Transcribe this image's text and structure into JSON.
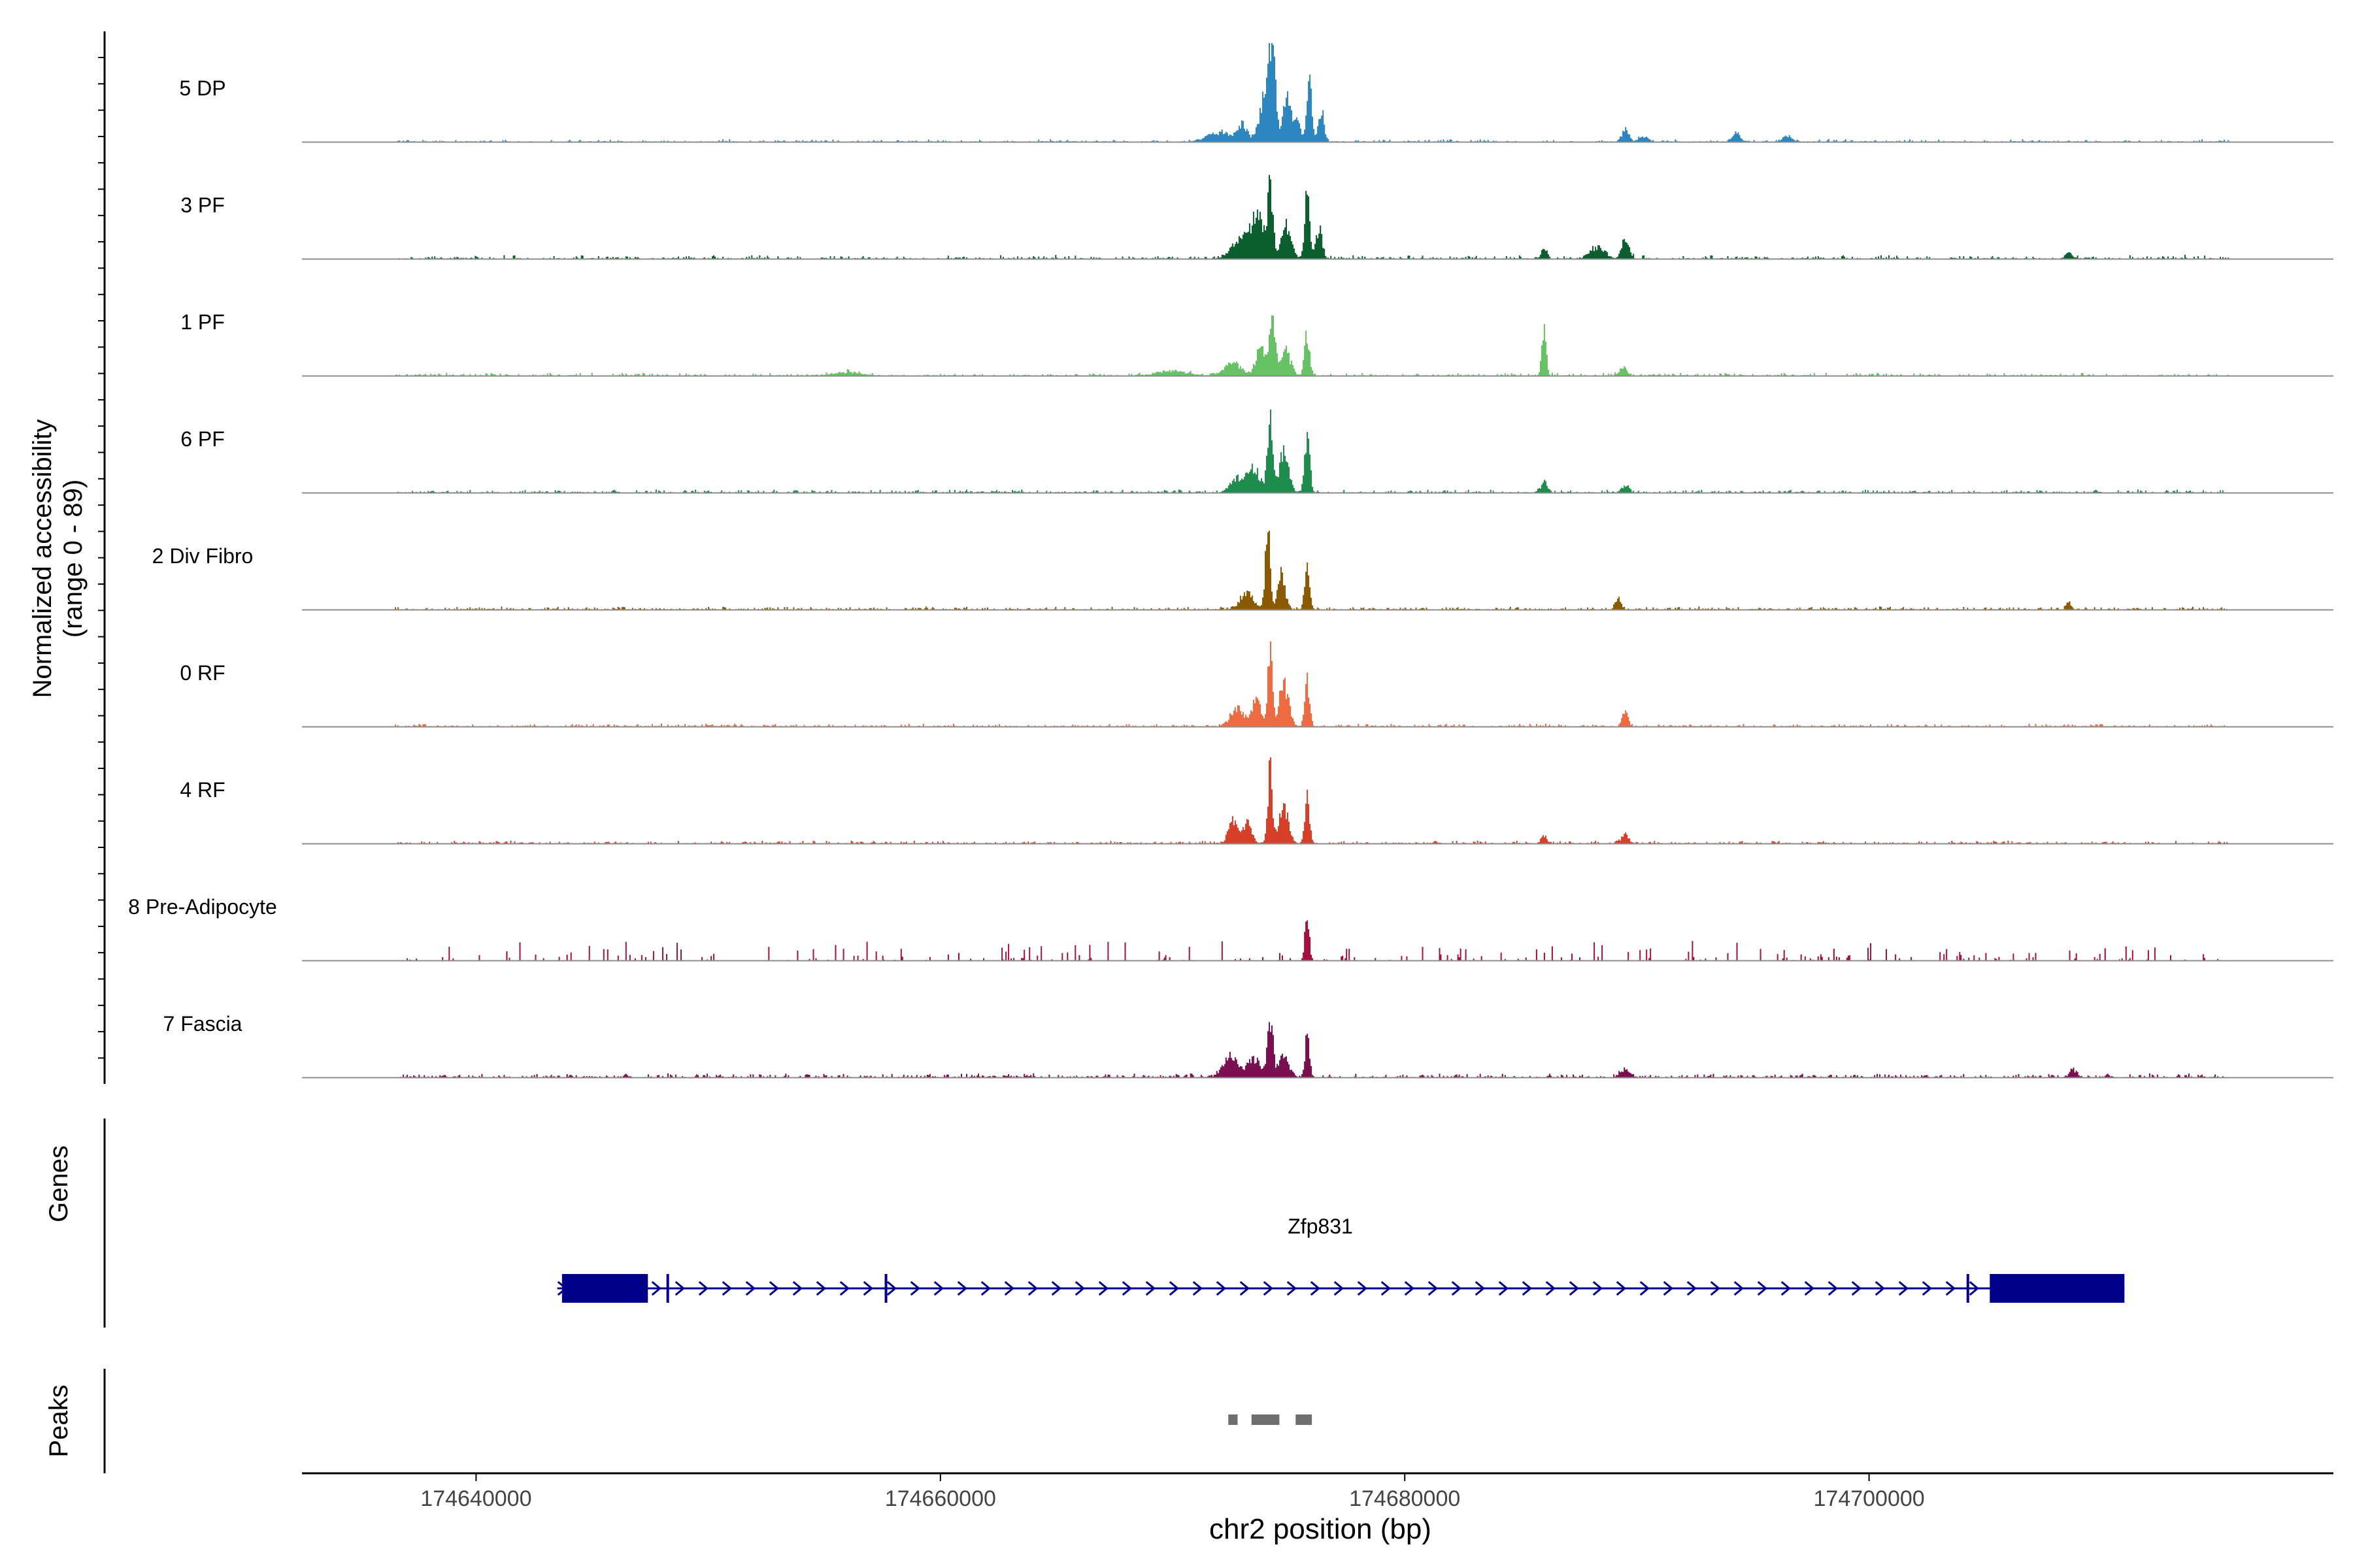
{
  "chart_data": {
    "type": "area",
    "title": "",
    "ylabel_main": "Normalized accessibility",
    "ylabel_range": "(range 0 - 89)",
    "y_range": [
      0,
      89
    ],
    "xlabel": "chr2 position (bp)",
    "xlim": [
      174632500,
      174720000
    ],
    "xticks": [
      174640000,
      174660000,
      174680000,
      174700000
    ],
    "xtick_labels": [
      "174640000",
      "174660000",
      "174680000",
      "174700000"
    ],
    "grid": false,
    "track_span": [
      174636500,
      174715500
    ],
    "tracks": [
      {
        "name": "5 DP",
        "color": "#2E86C1",
        "noise": 0.028,
        "density": 0.55,
        "peaks": [
          [
            174672000,
            0.12,
            500
          ],
          [
            174673000,
            0.22,
            200
          ],
          [
            174674300,
            1.0,
            130
          ],
          [
            174674000,
            0.6,
            250
          ],
          [
            174674900,
            0.5,
            150
          ],
          [
            174675300,
            0.28,
            200
          ],
          [
            174675900,
            0.9,
            100
          ],
          [
            174676400,
            0.42,
            120
          ],
          [
            174689500,
            0.16,
            150
          ],
          [
            174694300,
            0.12,
            150
          ],
          [
            174690300,
            0.07,
            200
          ],
          [
            174696500,
            0.07,
            200
          ]
        ]
      },
      {
        "name": "3 PF",
        "color": "#0B5E2E",
        "noise": 0.04,
        "density": 0.55,
        "peaks": [
          [
            174673000,
            0.3,
            400
          ],
          [
            174674200,
            0.82,
            120
          ],
          [
            174673700,
            0.5,
            250
          ],
          [
            174674900,
            0.42,
            200
          ],
          [
            174675800,
            0.78,
            110
          ],
          [
            174676300,
            0.4,
            130
          ],
          [
            174686000,
            0.12,
            120
          ],
          [
            174689500,
            0.25,
            150
          ],
          [
            174688300,
            0.15,
            300
          ],
          [
            174708600,
            0.07,
            150
          ]
        ]
      },
      {
        "name": "1 PF",
        "color": "#66C264",
        "noise": 0.032,
        "density": 0.55,
        "peaks": [
          [
            174672600,
            0.14,
            400
          ],
          [
            174673800,
            0.35,
            200
          ],
          [
            174674300,
            0.75,
            130
          ],
          [
            174674900,
            0.3,
            200
          ],
          [
            174675800,
            0.52,
            110
          ],
          [
            174686000,
            0.62,
            90
          ],
          [
            174689400,
            0.12,
            150
          ],
          [
            174670000,
            0.06,
            600
          ],
          [
            174656000,
            0.04,
            600
          ]
        ]
      },
      {
        "name": "6 PF",
        "color": "#1E8C4C",
        "noise": 0.035,
        "density": 0.6,
        "peaks": [
          [
            174672800,
            0.18,
            300
          ],
          [
            174673500,
            0.3,
            250
          ],
          [
            174674200,
            0.85,
            120
          ],
          [
            174674800,
            0.5,
            200
          ],
          [
            174675800,
            0.72,
            110
          ],
          [
            174686000,
            0.15,
            120
          ],
          [
            174689500,
            0.1,
            150
          ]
        ]
      },
      {
        "name": "2 Div Fibro",
        "color": "#8B5A00",
        "noise": 0.035,
        "density": 0.7,
        "peaks": [
          [
            174673200,
            0.2,
            300
          ],
          [
            174674100,
            1.0,
            100
          ],
          [
            174674700,
            0.45,
            150
          ],
          [
            174675800,
            0.72,
            100
          ],
          [
            174689200,
            0.14,
            120
          ],
          [
            174708600,
            0.1,
            100
          ]
        ]
      },
      {
        "name": "0 RF",
        "color": "#EE6A40",
        "noise": 0.032,
        "density": 0.6,
        "peaks": [
          [
            174672800,
            0.22,
            300
          ],
          [
            174673600,
            0.35,
            200
          ],
          [
            174674200,
            0.9,
            100
          ],
          [
            174674800,
            0.55,
            200
          ],
          [
            174675800,
            0.62,
            100
          ],
          [
            174689500,
            0.2,
            120
          ]
        ]
      },
      {
        "name": "4 RF",
        "color": "#D63F28",
        "noise": 0.032,
        "density": 0.55,
        "peaks": [
          [
            174672600,
            0.3,
            180
          ],
          [
            174673200,
            0.25,
            200
          ],
          [
            174674200,
            0.9,
            100
          ],
          [
            174674800,
            0.45,
            200
          ],
          [
            174675800,
            0.6,
            100
          ],
          [
            174686000,
            0.1,
            120
          ],
          [
            174689500,
            0.12,
            150
          ]
        ]
      },
      {
        "name": "8 Pre-Adipocyte",
        "color": "#A3113C",
        "noise": 0.22,
        "density": 0.18,
        "peaks": [
          [
            174675800,
            0.6,
            90
          ]
        ]
      },
      {
        "name": "7 Fascia",
        "color": "#7B1050",
        "noise": 0.045,
        "density": 0.6,
        "peaks": [
          [
            174672500,
            0.3,
            300
          ],
          [
            174673500,
            0.25,
            250
          ],
          [
            174674200,
            0.75,
            120
          ],
          [
            174674800,
            0.3,
            200
          ],
          [
            174675800,
            0.48,
            100
          ],
          [
            174689500,
            0.1,
            200
          ],
          [
            174708800,
            0.1,
            150
          ]
        ]
      }
    ],
    "gene_track": {
      "label": "Genes",
      "gene_name": "Zfp831",
      "strand": "+",
      "start": 174643500,
      "end": 174711000,
      "exons": [
        [
          174643700,
          174647400
        ],
        [
          174648200,
          174648300
        ],
        [
          174657600,
          174657700
        ],
        [
          174704200,
          174704300
        ],
        [
          174705200,
          174711000
        ]
      ],
      "color": "#00008B"
    },
    "peak_track": {
      "label": "Peaks",
      "peaks": [
        [
          174672400,
          174672800
        ],
        [
          174673400,
          174674600
        ],
        [
          174675300,
          174676000
        ]
      ],
      "color": "#6E6E6E"
    }
  }
}
